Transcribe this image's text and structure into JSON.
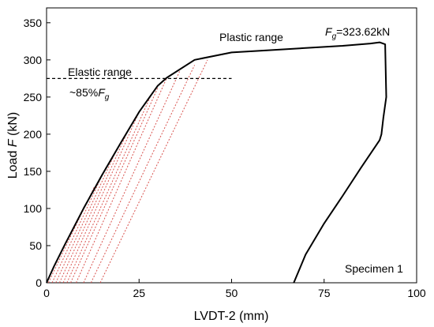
{
  "chart_data": {
    "type": "line",
    "title": "",
    "xlabel": "LVDT-2 (mm)",
    "ylabel_parts": [
      "Load ",
      "F",
      " (kN)"
    ],
    "xlim": [
      0,
      100
    ],
    "ylim": [
      0,
      370
    ],
    "xticks": [
      0,
      25,
      50,
      75,
      100
    ],
    "yticks": [
      0,
      50,
      100,
      150,
      200,
      250,
      300,
      350
    ],
    "grid": false,
    "colors": {
      "main": "#000000",
      "unloading": "#d9534f",
      "reference": "#000000"
    },
    "series": [
      {
        "role": "load-displacement-curve",
        "x": [
          0,
          2,
          5,
          10,
          15,
          20,
          25,
          30,
          32.5,
          40,
          50,
          60,
          70,
          80,
          87.5,
          90,
          91.5,
          91.8,
          91,
          90.5,
          90,
          85,
          80,
          75,
          70,
          66.8
        ],
        "y": [
          0,
          22,
          52,
          100,
          145,
          188,
          230,
          265,
          276,
          300,
          310,
          313,
          316,
          319,
          322,
          323.6,
          321,
          250,
          222,
          200,
          192,
          155,
          117,
          80,
          38,
          0
        ]
      },
      {
        "role": "unloading-reloading-loops",
        "loops": [
          {
            "x": [
              0.5,
              13
            ],
            "y": [
              0,
              130
            ]
          },
          {
            "x": [
              1.5,
              16
            ],
            "y": [
              0,
              155
            ]
          },
          {
            "x": [
              2.5,
              19
            ],
            "y": [
              0,
              180
            ]
          },
          {
            "x": [
              3.5,
              22
            ],
            "y": [
              0,
              205
            ]
          },
          {
            "x": [
              4.5,
              25
            ],
            "y": [
              0,
              230
            ]
          },
          {
            "x": [
              5.5,
              28
            ],
            "y": [
              0,
              250
            ]
          },
          {
            "x": [
              6.5,
              30
            ],
            "y": [
              0,
              262
            ]
          },
          {
            "x": [
              8,
              32.5
            ],
            "y": [
              0,
              276
            ]
          },
          {
            "x": [
              10,
              36
            ],
            "y": [
              0,
              285
            ]
          },
          {
            "x": [
              12,
              40
            ],
            "y": [
              0,
              293
            ]
          },
          {
            "x": [
              14.5,
              43.5
            ],
            "y": [
              0,
              300
            ]
          }
        ]
      },
      {
        "role": "85-percent-reference",
        "x": [
          0,
          50
        ],
        "y": [
          275,
          275
        ]
      }
    ],
    "annotations": {
      "elastic": "Elastic range",
      "plastic": "Plastic range",
      "pct_prefix": "~85%",
      "f_symbol": "F",
      "g_sub": "g",
      "peak_value": "=323.62kN",
      "specimen": "Specimen 1"
    }
  }
}
